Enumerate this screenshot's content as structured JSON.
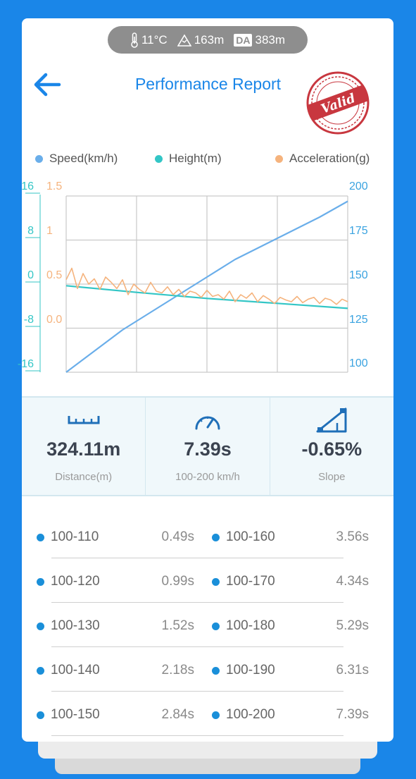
{
  "header": {
    "temperature": "11°C",
    "altitude": "163m",
    "density_altitude_badge": "DA",
    "density_altitude": "383m",
    "title": "Performance Report",
    "stamp_text": "Valid"
  },
  "legend": [
    {
      "label": "Speed(km/h)",
      "color": "#6aaeea"
    },
    {
      "label": "Height(m)",
      "color": "#33c6c6"
    },
    {
      "label": "Acceleration(g)",
      "color": "#f5b37d"
    }
  ],
  "chart_data": {
    "type": "line",
    "left_axis_height": [
      "16",
      "8",
      "0",
      "-8",
      "-16"
    ],
    "left_axis_accel": [
      "1.5",
      "1",
      "0.5",
      "0.0"
    ],
    "right_axis_speed": [
      "200",
      "175",
      "150",
      "125",
      "100"
    ],
    "ylim_speed": [
      100,
      200
    ],
    "ylim_height": [
      -16,
      16
    ],
    "ylim_accel": [
      -0.5,
      1.5
    ],
    "grid": true,
    "series": [
      {
        "name": "Speed(km/h)",
        "axis": "right",
        "color": "#6aaeea",
        "x": [
          0,
          0.05,
          0.1,
          0.15,
          0.2,
          0.3,
          0.4,
          0.5,
          0.6,
          0.7,
          0.8,
          0.9,
          1.0
        ],
        "values": [
          100,
          106,
          112,
          118,
          124,
          134,
          144,
          154,
          164,
          172,
          180,
          188,
          197
        ]
      },
      {
        "name": "Height(m)",
        "axis": "left",
        "color": "#33c6c6",
        "x": [
          0,
          0.25,
          0.5,
          0.75,
          1.0
        ],
        "values": [
          -0.3,
          -1.5,
          -2.6,
          -3.5,
          -4.4
        ]
      },
      {
        "name": "Acceleration(g)",
        "axis": "left",
        "color": "#f5b37d",
        "x": [
          0,
          0.02,
          0.04,
          0.06,
          0.08,
          0.1,
          0.12,
          0.14,
          0.16,
          0.18,
          0.2,
          0.22,
          0.24,
          0.26,
          0.28,
          0.3,
          0.32,
          0.34,
          0.36,
          0.38,
          0.4,
          0.42,
          0.44,
          0.46,
          0.48,
          0.5,
          0.52,
          0.54,
          0.56,
          0.58,
          0.6,
          0.62,
          0.64,
          0.66,
          0.68,
          0.7,
          0.72,
          0.74,
          0.76,
          0.78,
          0.8,
          0.82,
          0.84,
          0.86,
          0.88,
          0.9,
          0.92,
          0.94,
          0.96,
          0.98,
          1.0
        ],
        "values": [
          0.55,
          0.68,
          0.45,
          0.62,
          0.5,
          0.56,
          0.44,
          0.58,
          0.52,
          0.45,
          0.55,
          0.38,
          0.5,
          0.44,
          0.4,
          0.52,
          0.42,
          0.4,
          0.47,
          0.38,
          0.44,
          0.36,
          0.42,
          0.4,
          0.35,
          0.43,
          0.36,
          0.38,
          0.33,
          0.42,
          0.3,
          0.38,
          0.34,
          0.4,
          0.3,
          0.37,
          0.33,
          0.28,
          0.35,
          0.32,
          0.3,
          0.36,
          0.29,
          0.33,
          0.35,
          0.28,
          0.34,
          0.32,
          0.27,
          0.33,
          0.3
        ]
      }
    ]
  },
  "stats": [
    {
      "value": "324.11m",
      "label": "Distance(m)",
      "icon": "ruler-icon"
    },
    {
      "value": "7.39s",
      "label": "100-200 km/h",
      "icon": "speedometer-icon"
    },
    {
      "value": "-0.65%",
      "label": "Slope",
      "icon": "slope-icon"
    }
  ],
  "splits": [
    [
      {
        "range": "100-110",
        "time": "0.49s"
      },
      {
        "range": "100-160",
        "time": "3.56s"
      }
    ],
    [
      {
        "range": "100-120",
        "time": "0.99s"
      },
      {
        "range": "100-170",
        "time": "4.34s"
      }
    ],
    [
      {
        "range": "100-130",
        "time": "1.52s"
      },
      {
        "range": "100-180",
        "time": "5.29s"
      }
    ],
    [
      {
        "range": "100-140",
        "time": "2.18s"
      },
      {
        "range": "100-190",
        "time": "6.31s"
      }
    ],
    [
      {
        "range": "100-150",
        "time": "2.84s"
      },
      {
        "range": "100-200",
        "time": "7.39s"
      }
    ]
  ],
  "colors": {
    "accent": "#1a86e8",
    "split_dot": "#1a8fd9",
    "stamp": "#c8373f"
  }
}
